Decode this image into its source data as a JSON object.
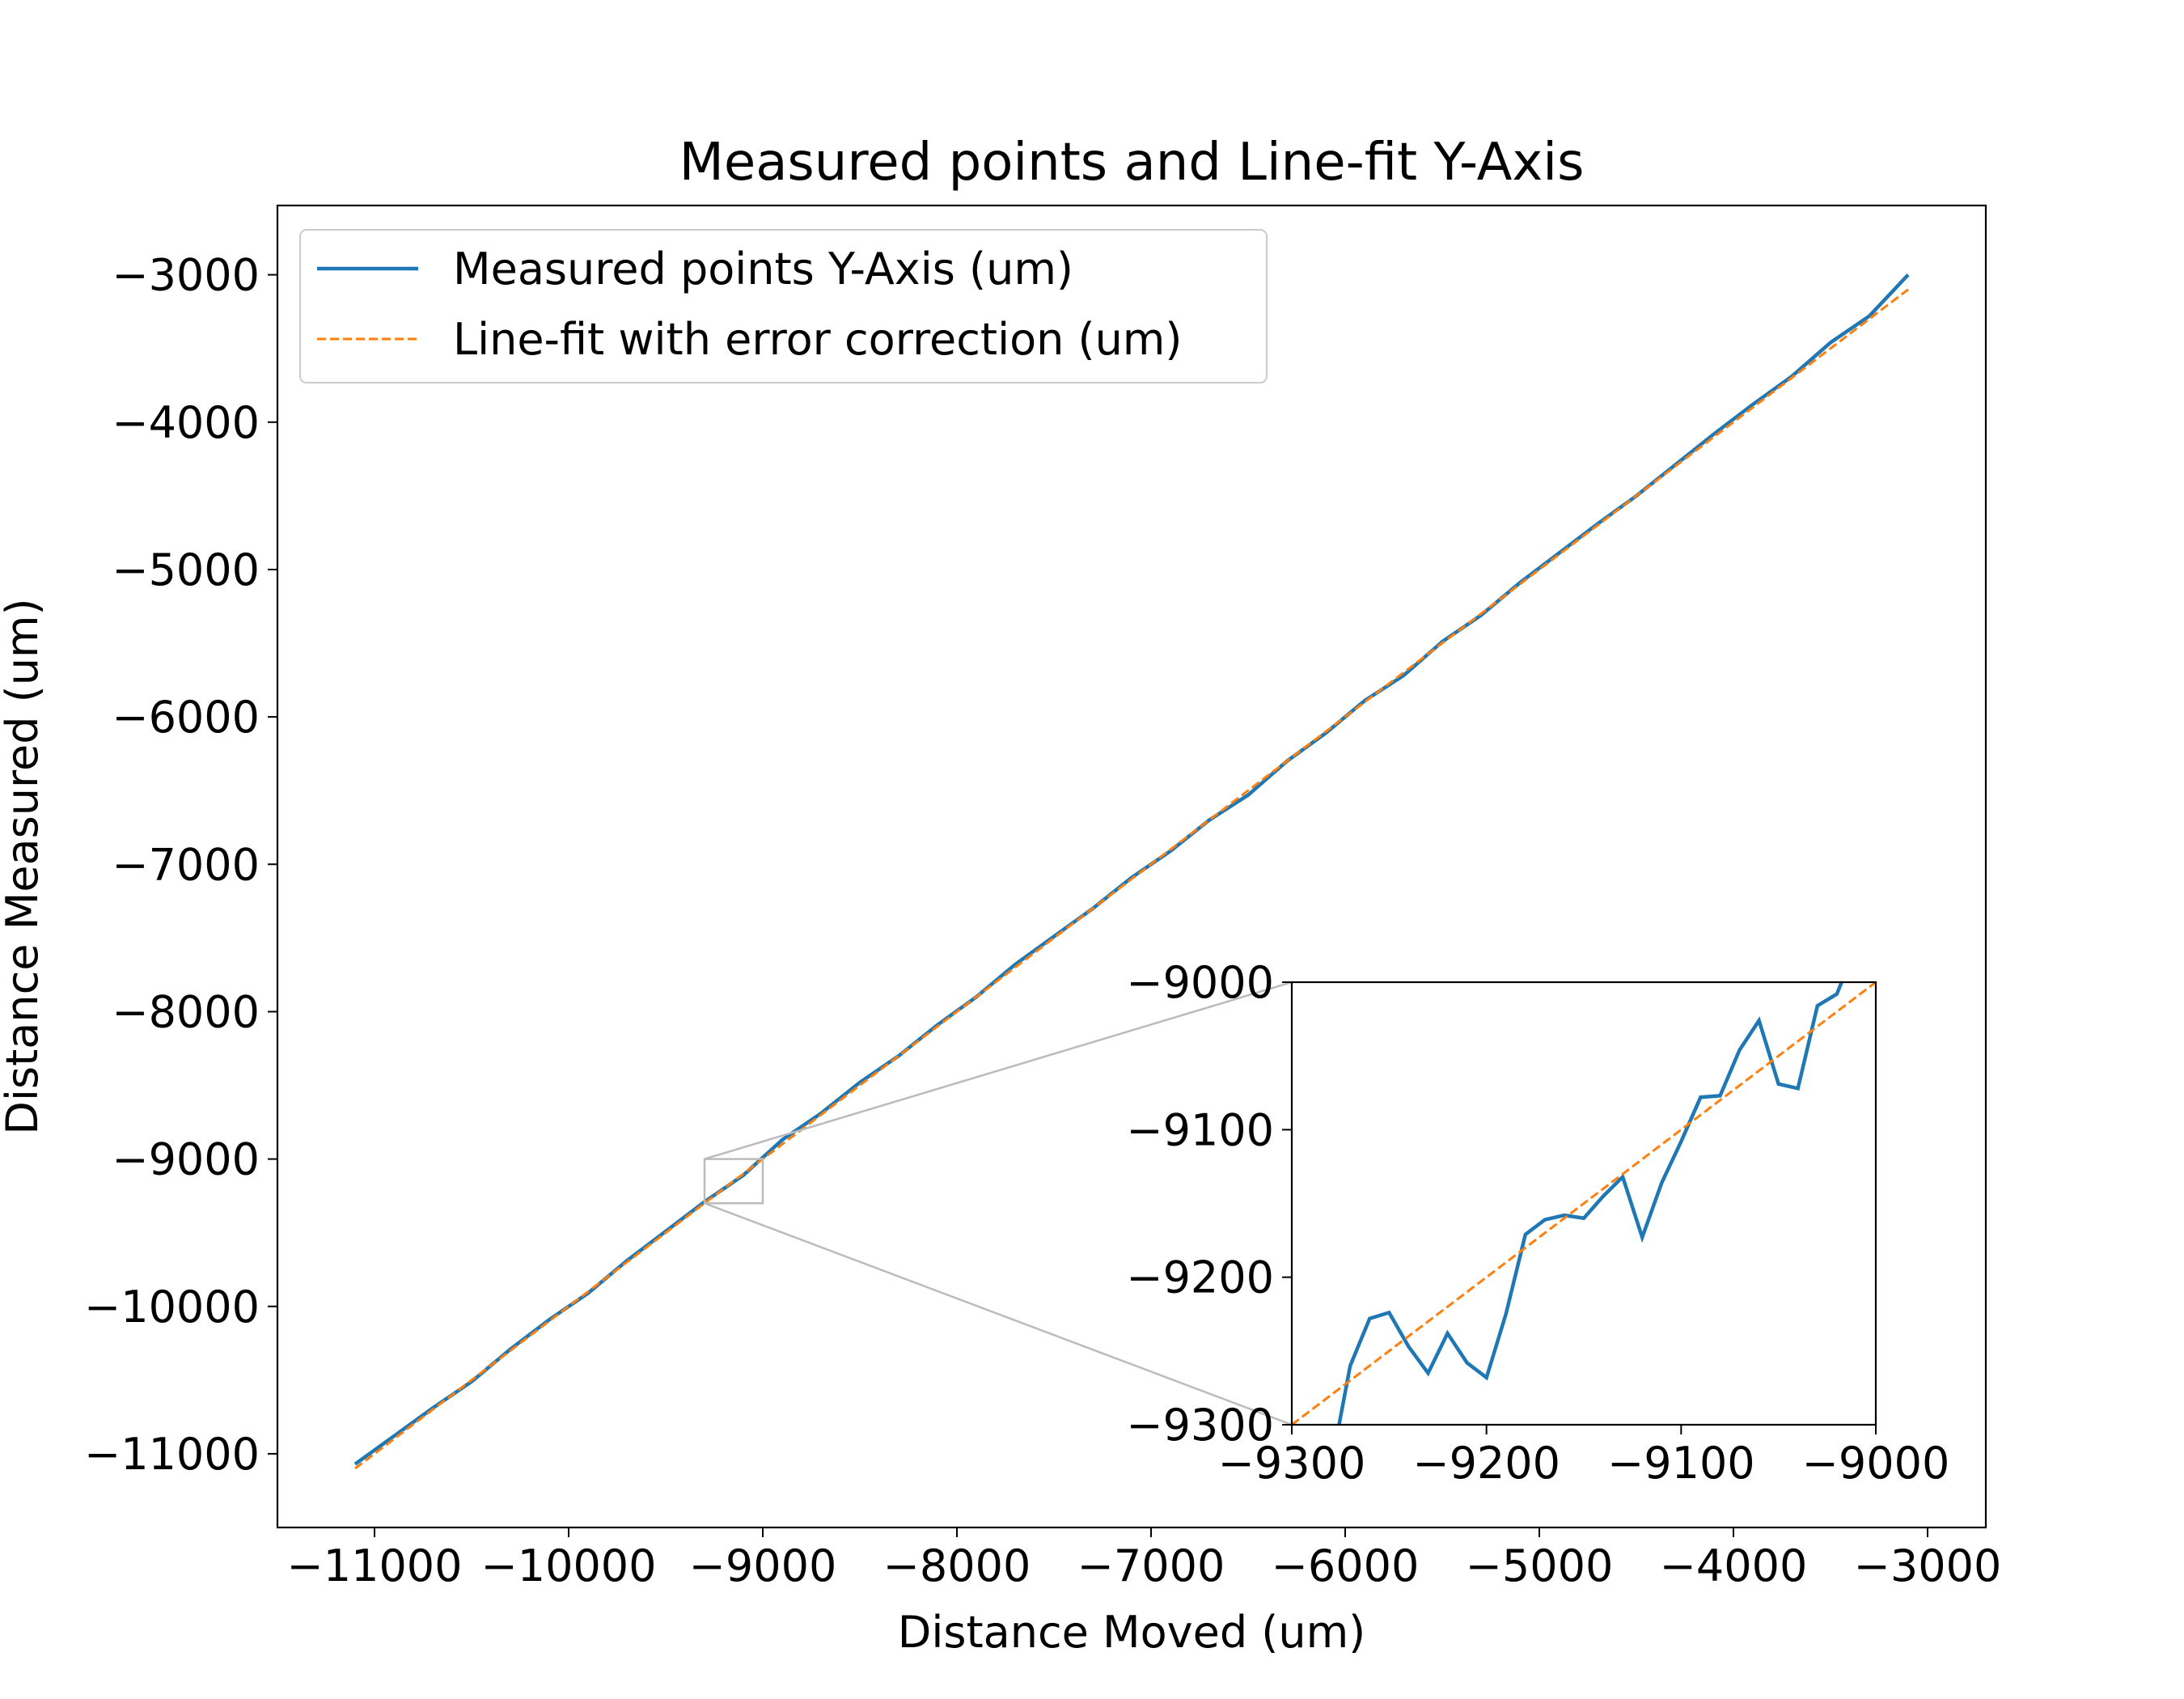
{
  "chart_data": [
    {
      "type": "line",
      "title": "Measured points and Line-fit Y-Axis",
      "xlabel": "Distance Moved (um)",
      "ylabel": "Distance Measured (um)",
      "xlim": [
        -11500,
        -2700
      ],
      "ylim": [
        -11500,
        -2530
      ],
      "xticks": [
        {
          "value": -11000,
          "label": "−11000"
        },
        {
          "value": -10000,
          "label": "−10000"
        },
        {
          "value": -9000,
          "label": "−9000"
        },
        {
          "value": -8000,
          "label": "−8000"
        },
        {
          "value": -7000,
          "label": "−7000"
        },
        {
          "value": -6000,
          "label": "−6000"
        },
        {
          "value": -5000,
          "label": "−5000"
        },
        {
          "value": -4000,
          "label": "−4000"
        },
        {
          "value": -3000,
          "label": "−3000"
        }
      ],
      "yticks": [
        {
          "value": -11000,
          "label": "−11000"
        },
        {
          "value": -10000,
          "label": "−10000"
        },
        {
          "value": -9000,
          "label": "−9000"
        },
        {
          "value": -8000,
          "label": "−8000"
        },
        {
          "value": -7000,
          "label": "−7000"
        },
        {
          "value": -6000,
          "label": "−6000"
        },
        {
          "value": -5000,
          "label": "−5000"
        },
        {
          "value": -4000,
          "label": "−4000"
        },
        {
          "value": -3000,
          "label": "−3000"
        }
      ],
      "legend": "upper left",
      "series": [
        {
          "name": "Measured points Y-Axis (um)",
          "color": "#1f77b4",
          "style": "solid",
          "x": [
            -11100,
            -10900,
            -10700,
            -10500,
            -10300,
            -10100,
            -9900,
            -9700,
            -9500,
            -9300,
            -9100,
            -8900,
            -8700,
            -8500,
            -8300,
            -8100,
            -7900,
            -7700,
            -7500,
            -7300,
            -7100,
            -6900,
            -6700,
            -6500,
            -6300,
            -6100,
            -5900,
            -5700,
            -5500,
            -5300,
            -5100,
            -4900,
            -4700,
            -4500,
            -4300,
            -4100,
            -3900,
            -3700,
            -3500,
            -3300,
            -3100
          ],
          "values": [
            -11070,
            -10880,
            -10690,
            -10510,
            -10290,
            -10090,
            -9910,
            -9690,
            -9490,
            -9290,
            -9110,
            -8870,
            -8690,
            -8480,
            -8300,
            -8090,
            -7900,
            -7680,
            -7490,
            -7300,
            -7090,
            -6910,
            -6700,
            -6530,
            -6300,
            -6110,
            -5890,
            -5720,
            -5490,
            -5310,
            -5090,
            -4890,
            -4690,
            -4500,
            -4290,
            -4080,
            -3880,
            -3690,
            -3460,
            -3280,
            -3000
          ]
        },
        {
          "name": "Line-fit with error correction (um)",
          "color": "#ff7f0e",
          "style": "dashed",
          "x": [
            -11100,
            -3100
          ],
          "values": [
            -11100,
            -3100
          ]
        }
      ]
    },
    {
      "type": "line",
      "xlim": [
        -9300,
        -9000
      ],
      "ylim": [
        -9300,
        -9000
      ],
      "xticks": [
        {
          "value": -9300,
          "label": "−9300"
        },
        {
          "value": -9200,
          "label": "−9200"
        },
        {
          "value": -9100,
          "label": "−9100"
        },
        {
          "value": -9000,
          "label": "−9000"
        }
      ],
      "yticks": [
        {
          "value": -9300,
          "label": "−9300"
        },
        {
          "value": -9200,
          "label": "−9200"
        },
        {
          "value": -9100,
          "label": "−9100"
        },
        {
          "value": -9000,
          "label": "−9000"
        }
      ],
      "series": [
        {
          "color": "#1f77b4",
          "style": "solid",
          "x": [
            -9280,
            -9270,
            -9260,
            -9250,
            -9240,
            -9230,
            -9220,
            -9210,
            -9200,
            -9190,
            -9180,
            -9170,
            -9160,
            -9150,
            -9140,
            -9130,
            -9120,
            -9110,
            -9100,
            -9090,
            -9080,
            -9070,
            -9060,
            -9050,
            -9040,
            -9030,
            -9020,
            -9010
          ],
          "values": [
            -9330,
            -9260,
            -9228,
            -9224,
            -9247,
            -9265,
            -9238,
            -9258,
            -9268,
            -9225,
            -9171,
            -9161,
            -9158,
            -9160,
            -9145,
            -9132,
            -9173,
            -9136,
            -9108,
            -9078,
            -9077,
            -9046,
            -9026,
            -9069,
            -9072,
            -9016,
            -9008,
            -8975
          ]
        },
        {
          "color": "#ff7f0e",
          "style": "dashed",
          "x": [
            -9300,
            -9000
          ],
          "values": [
            -9300,
            -9000
          ]
        }
      ]
    }
  ]
}
